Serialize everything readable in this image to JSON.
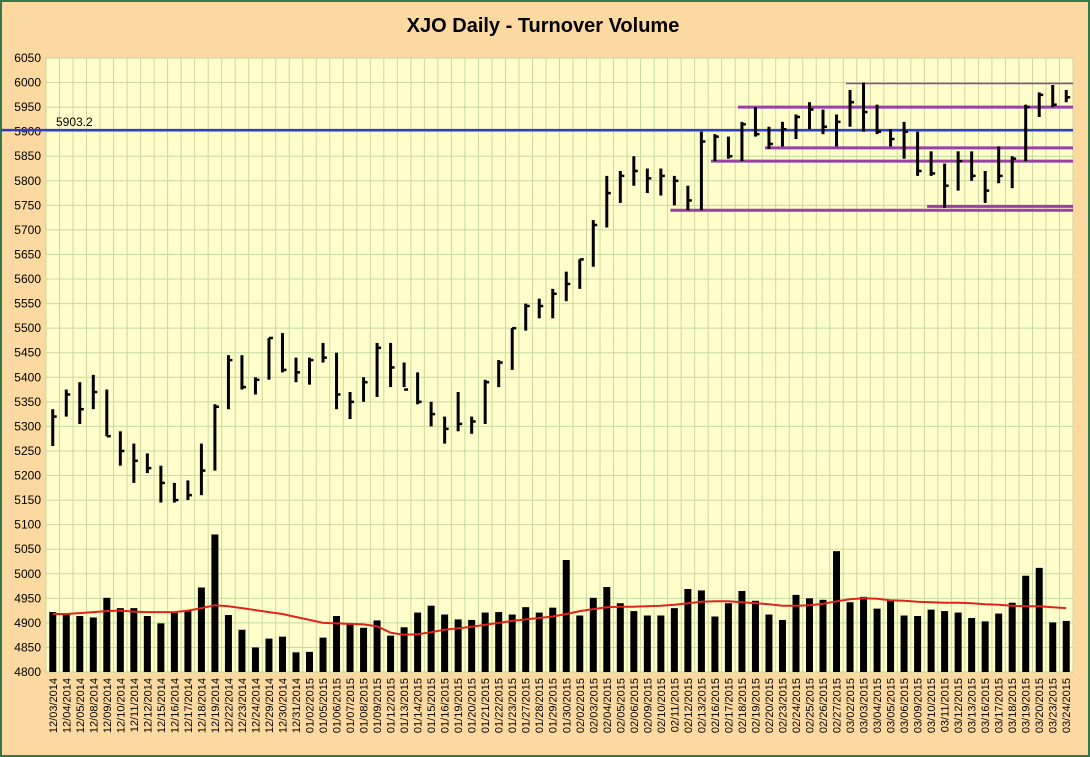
{
  "chart_data": {
    "type": "ohlc",
    "title": "XJO Daily - Turnover Volume",
    "ylim": [
      4800,
      6050
    ],
    "ytick_step": 50,
    "colors": {
      "background": "#fbd9a0",
      "plot": "#ffffcc",
      "grid": "#c8d8a0",
      "price": "#000000",
      "volume": "#000000",
      "ma": "#e0241c",
      "resistance": "#2b3ec7",
      "support": "#9a3fa6"
    },
    "dates": [
      "12/03/2014",
      "12/04/2014",
      "12/05/2014",
      "12/08/2014",
      "12/09/2014",
      "12/10/2014",
      "12/11/2014",
      "12/12/2014",
      "12/15/2014",
      "12/16/2014",
      "12/17/2014",
      "12/18/2014",
      "12/19/2014",
      "12/22/2014",
      "12/23/2014",
      "12/24/2014",
      "12/29/2014",
      "12/30/2014",
      "12/31/2014",
      "01/02/2015",
      "01/05/2015",
      "01/06/2015",
      "01/07/2015",
      "01/08/2015",
      "01/09/2015",
      "01/12/2015",
      "01/13/2015",
      "01/14/2015",
      "01/15/2015",
      "01/16/2015",
      "01/19/2015",
      "01/20/2015",
      "01/21/2015",
      "01/22/2015",
      "01/23/2015",
      "01/27/2015",
      "01/28/2015",
      "01/29/2015",
      "01/30/2015",
      "02/02/2015",
      "02/03/2015",
      "02/04/2015",
      "02/05/2015",
      "02/06/2015",
      "02/09/2015",
      "02/10/2015",
      "02/11/2015",
      "02/12/2015",
      "02/13/2015",
      "02/16/2015",
      "02/17/2015",
      "02/18/2015",
      "02/19/2015",
      "02/20/2015",
      "02/23/2015",
      "02/24/2015",
      "02/25/2015",
      "02/26/2015",
      "02/27/2015",
      "03/02/2015",
      "03/03/2015",
      "03/04/2015",
      "03/05/2015",
      "03/06/2015",
      "03/09/2015",
      "03/10/2015",
      "03/11/2015",
      "03/12/2015",
      "03/13/2015",
      "03/16/2015",
      "03/17/2015",
      "03/18/2015",
      "03/19/2015",
      "03/20/2015",
      "03/23/2015",
      "03/24/2015"
    ],
    "xtick_labels": [
      "12/03/2014",
      "12/04/2014",
      "12/05/2014",
      "12/08/2014",
      "12/09/2014",
      "12/10/2014",
      "12/11/2014",
      "12/12/2014",
      "12/15/2014",
      "12/16/2014",
      "12/17/2014",
      "12/18/2014",
      "12/19/2014",
      "12/22/2014",
      "12/23/2014",
      "12/24/2014",
      "12/29/2014",
      "12/30/2014",
      "12/31/2014",
      "01/02/2015",
      "01/05/2015",
      "01/06/2015",
      "01/07/2015",
      "01/08/2015",
      "01/09/2015",
      "01/12/2015",
      "01/13/2015",
      "01/14/2015",
      "01/15/2015",
      "01/16/2015",
      "01/19/2015",
      "01/20/2015",
      "01/21/2015",
      "01/22/2015",
      "01/23/2015",
      "01/27/2015",
      "01/28/2015",
      "01/29/2015",
      "01/30/2015",
      "02/02/2015",
      "02/03/2015",
      "02/04/2015",
      "02/05/2015",
      "02/06/2015",
      "02/09/2015",
      "02/10/2015",
      "02/11/2015",
      "02/12/2015",
      "02/13/2015",
      "02/16/2015",
      "02/17/2015",
      "02/18/2015",
      "02/19/2015",
      "02/20/2015",
      "02/23/2015",
      "02/24/2015",
      "02/25/2015",
      "02/26/2015",
      "02/27/2015",
      "03/02/2015",
      "03/03/2015",
      "03/04/2015",
      "03/05/2015",
      "03/06/2015",
      "03/09/2015",
      "03/10/2015",
      "03/11/2015",
      "03/12/2015",
      "03/13/2015",
      "03/16/2015",
      "03/17/2015",
      "03/18/2015",
      "03/19/2015",
      "03/20/2015",
      "03/23/2015",
      "03/24/2015"
    ],
    "high": [
      5335,
      5375,
      5390,
      5405,
      5375,
      5290,
      5265,
      5245,
      5220,
      5185,
      5190,
      5265,
      5345,
      5445,
      5445,
      5400,
      5480,
      5490,
      5440,
      5440,
      5470,
      5450,
      5370,
      5400,
      5470,
      5470,
      5430,
      5410,
      5350,
      5320,
      5370,
      5320,
      5395,
      5435,
      5500,
      5550,
      5560,
      5580,
      5615,
      5640,
      5720,
      5810,
      5820,
      5850,
      5825,
      5825,
      5810,
      5790,
      5900,
      5895,
      5890,
      5920,
      5950,
      5910,
      5920,
      5935,
      5960,
      5945,
      5935,
      5985,
      6000,
      5955,
      5905,
      5920,
      5900,
      5860,
      5835,
      5860,
      5860,
      5820,
      5870,
      5850,
      5955,
      5980,
      5995,
      5985
    ],
    "low": [
      5260,
      5320,
      5305,
      5335,
      5280,
      5220,
      5185,
      5205,
      5145,
      5145,
      5150,
      5160,
      5210,
      5335,
      5375,
      5365,
      5395,
      5410,
      5390,
      5385,
      5430,
      5335,
      5315,
      5350,
      5360,
      5380,
      5380,
      5345,
      5300,
      5265,
      5290,
      5285,
      5305,
      5380,
      5415,
      5495,
      5520,
      5520,
      5555,
      5580,
      5625,
      5705,
      5755,
      5790,
      5775,
      5770,
      5750,
      5740,
      5740,
      5840,
      5845,
      5840,
      5890,
      5865,
      5870,
      5885,
      5905,
      5895,
      5870,
      5910,
      5900,
      5895,
      5870,
      5845,
      5810,
      5810,
      5745,
      5780,
      5800,
      5755,
      5795,
      5785,
      5840,
      5930,
      5950,
      5960
    ],
    "close": [
      5320,
      5365,
      5335,
      5370,
      5280,
      5250,
      5230,
      5215,
      5185,
      5150,
      5160,
      5210,
      5340,
      5435,
      5380,
      5395,
      5480,
      5415,
      5410,
      5435,
      5440,
      5365,
      5350,
      5390,
      5460,
      5420,
      5375,
      5350,
      5325,
      5295,
      5305,
      5310,
      5390,
      5430,
      5500,
      5545,
      5545,
      5570,
      5590,
      5640,
      5710,
      5775,
      5810,
      5820,
      5805,
      5810,
      5800,
      5760,
      5880,
      5890,
      5850,
      5915,
      5895,
      5875,
      5905,
      5930,
      5945,
      5910,
      5920,
      5960,
      5940,
      5900,
      5885,
      5900,
      5820,
      5815,
      5790,
      5840,
      5810,
      5780,
      5810,
      5845,
      5950,
      5975,
      5955,
      5970
    ],
    "volume": [
      4922,
      4918,
      4914,
      4911,
      4951,
      4930,
      4930,
      4914,
      4899,
      4921,
      4924,
      4972,
      5080,
      4916,
      4886,
      4850,
      4868,
      4872,
      4840,
      4841,
      4870,
      4914,
      4897,
      4890,
      4905,
      4874,
      4891,
      4921,
      4935,
      4917,
      4907,
      4906,
      4921,
      4922,
      4917,
      4932,
      4921,
      4931,
      5028,
      4915,
      4951,
      4973,
      4940,
      4924,
      4915,
      4915,
      4930,
      4969,
      4966,
      4913,
      4940,
      4965,
      4945,
      4917,
      4906,
      4957,
      4950,
      4947,
      5046,
      4942,
      4953,
      4929,
      4946,
      4915,
      4914,
      4927,
      4924,
      4921,
      4910,
      4903,
      4919,
      4941,
      4996,
      5012,
      4901,
      4904
    ],
    "moving_average": [
      4918,
      4918,
      4920,
      4922,
      4924,
      4925,
      4923,
      4922,
      4922,
      4922,
      4925,
      4930,
      4936,
      4934,
      4930,
      4926,
      4922,
      4918,
      4912,
      4906,
      4900,
      4899,
      4898,
      4897,
      4893,
      4880,
      4876,
      4877,
      4881,
      4886,
      4889,
      4892,
      4896,
      4900,
      4904,
      4907,
      4910,
      4913,
      4918,
      4924,
      4928,
      4932,
      4933,
      4933,
      4934,
      4935,
      4937,
      4940,
      4943,
      4944,
      4944,
      4942,
      4940,
      4938,
      4935,
      4935,
      4936,
      4939,
      4944,
      4948,
      4950,
      4949,
      4946,
      4945,
      4943,
      4942,
      4941,
      4941,
      4940,
      4938,
      4937,
      4935,
      4934,
      4934,
      4932,
      4930
    ],
    "resistance": {
      "value": 5903.2,
      "label": "5903.2"
    },
    "support_lines": [
      {
        "y": 5998,
        "from": "03/02/2015",
        "to": "03/24/2015"
      },
      {
        "y": 5950,
        "from": "02/18/2015",
        "to": "03/24/2015"
      },
      {
        "y": 5867,
        "from": "02/20/2015",
        "to": "03/24/2015"
      },
      {
        "y": 5840,
        "from": "02/16/2015",
        "to": "03/24/2015"
      },
      {
        "y": 5748,
        "from": "03/10/2015",
        "to": "03/24/2015"
      },
      {
        "y": 5740,
        "from": "02/11/2015",
        "to": "03/24/2015"
      }
    ]
  }
}
